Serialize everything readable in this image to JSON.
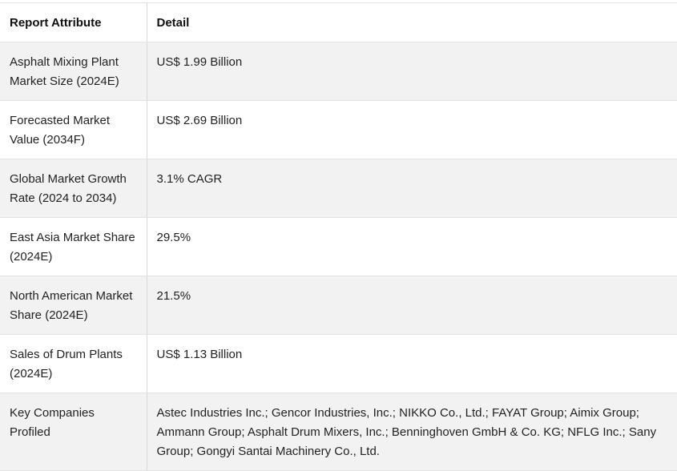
{
  "table": {
    "headers": {
      "attribute": "Report Attribute",
      "detail": "Detail"
    },
    "rows": [
      {
        "attribute": "Asphalt Mixing Plant Market Size (2024E)",
        "detail": "US$ 1.99 Billion"
      },
      {
        "attribute": "Forecasted Market Value (2034F)",
        "detail": "US$ 2.69 Billion"
      },
      {
        "attribute": "Global Market Growth Rate (2024 to 2034)",
        "detail": "3.1% CAGR"
      },
      {
        "attribute": "East Asia Market Share (2024E)",
        "detail": "29.5%"
      },
      {
        "attribute": "North American Market Share (2024E)",
        "detail": "21.5%"
      },
      {
        "attribute": "Sales of Drum Plants (2024E)",
        "detail": "US$ 1.13 Billion"
      },
      {
        "attribute": "Key Companies Profiled",
        "detail": "Astec Industries Inc.; Gencor Industries, Inc.; NIKKO Co., Ltd.; FAYAT Group; Aimix Group; Ammann Group; Asphalt Drum Mixers, Inc.; Benninghoven GmbH & Co. KG; NFLG Inc.; Sany Group; Gongyi Santai Machinery Co., Ltd."
      }
    ]
  },
  "colors": {
    "stripe": "#f2f2f2",
    "border": "#e3e3e3",
    "text": "#222222"
  }
}
